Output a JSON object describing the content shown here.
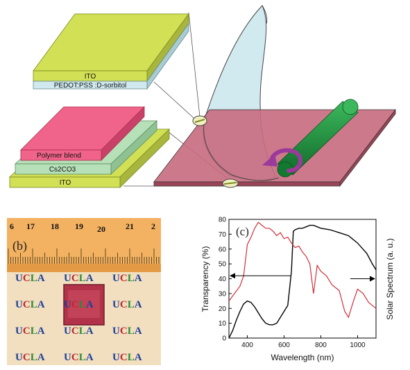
{
  "panel_a": {
    "top_stack": {
      "layer_top": "ITO",
      "layer_bottom": "PEDOT:PSS :D-sorbitol"
    },
    "bottom_stack": {
      "layer_1": "Polymer blend",
      "layer_2": "Cs2CO3",
      "layer_3": "ITO"
    },
    "colors": {
      "ito": "#d2e055",
      "pedot": "#cfe9ee",
      "polymer": "#f0638a",
      "cs2co3": "#b6e0b8",
      "film": "#c9e6ec",
      "base": "#c76b7e",
      "roller": "#1f8a3c",
      "arrow": "#9b3a9b"
    }
  },
  "panel_b": {
    "label": "(b)",
    "ruler_numbers": [
      "6",
      "17",
      "18",
      "19",
      "20",
      "21",
      "2"
    ],
    "ucla_text": "UCLA",
    "letter_colors": [
      "#1d3f9a",
      "#c0262d",
      "#2a8a3a",
      "#1d3f9a"
    ]
  },
  "chart_data": {
    "type": "line",
    "label": "(c)",
    "xlabel": "Wavelength (nm)",
    "ylabel": "Transparency (%)",
    "y2label": "Solar Spectrum (a. u.)",
    "xlim": [
      300,
      1100
    ],
    "ylim": [
      0,
      80
    ],
    "x_ticks": [
      400,
      600,
      800,
      1000
    ],
    "y_ticks": [
      0,
      10,
      20,
      30,
      40,
      50,
      60,
      70,
      80
    ],
    "series": [
      {
        "color": "#000000",
        "axis": "left",
        "x": [
          300,
          320,
          340,
          360,
          380,
          400,
          420,
          440,
          460,
          480,
          500,
          520,
          540,
          560,
          580,
          600,
          620,
          640,
          650,
          660,
          680,
          700,
          720,
          740,
          760,
          780,
          800,
          850,
          900,
          950,
          1000,
          1050,
          1080,
          1100
        ],
        "y": [
          0,
          5,
          12,
          18,
          23,
          25,
          24,
          21,
          17,
          13,
          10,
          9,
          9,
          10,
          14,
          18,
          22,
          45,
          72,
          73,
          74,
          74,
          75,
          76,
          76,
          75,
          74,
          73,
          71,
          69,
          64,
          57,
          50,
          46
        ]
      },
      {
        "color": "#d0303a",
        "axis": "right",
        "x": [
          300,
          330,
          360,
          380,
          400,
          420,
          440,
          460,
          480,
          500,
          520,
          540,
          560,
          580,
          600,
          620,
          640,
          660,
          680,
          700,
          720,
          740,
          760,
          780,
          800,
          830,
          860,
          900,
          930,
          950,
          980,
          1000,
          1030,
          1060,
          1100
        ],
        "y": [
          25,
          30,
          35,
          42,
          63,
          68,
          74,
          78,
          76,
          74,
          74,
          72,
          69,
          71,
          67,
          68,
          64,
          61,
          62,
          58,
          55,
          50,
          30,
          49,
          45,
          42,
          36,
          32,
          18,
          14,
          26,
          33,
          30,
          24,
          20
        ]
      }
    ],
    "annotations": [
      {
        "type": "arrow",
        "direction": "left",
        "y": 42,
        "x_from": 640,
        "x_to": 300,
        "series": "left-axis"
      },
      {
        "type": "arrow",
        "direction": "right",
        "y": 40,
        "x_from": 960,
        "x_to": 1100,
        "series": "right-axis"
      }
    ]
  }
}
